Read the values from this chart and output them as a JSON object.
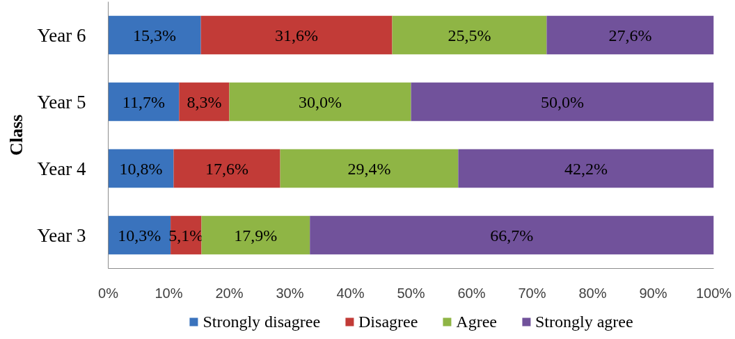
{
  "chart_data": {
    "type": "bar",
    "orientation": "horizontal",
    "stacked": true,
    "ylabel": "Class",
    "categories": [
      "Year 6",
      "Year 5",
      "Year 4",
      "Year 3"
    ],
    "series": [
      {
        "name": "Strongly disagree",
        "color": "#3a73bd",
        "values": [
          15.3,
          11.7,
          10.8,
          10.3
        ],
        "value_labels": [
          "15,3%",
          "11,7%",
          "10,8%",
          "10,3%"
        ]
      },
      {
        "name": "Disagree",
        "color": "#c23b37",
        "values": [
          31.6,
          8.3,
          17.6,
          5.1
        ],
        "value_labels": [
          "31,6%",
          "8,3%",
          "17,6%",
          "5,1%"
        ]
      },
      {
        "name": "Agree",
        "color": "#8fb545",
        "values": [
          25.5,
          30.0,
          29.4,
          17.9
        ],
        "value_labels": [
          "25,5%",
          "30,0%",
          "29,4%",
          "17,9%"
        ]
      },
      {
        "name": "Strongly agree",
        "color": "#71529b",
        "values": [
          27.6,
          50.0,
          42.2,
          66.7
        ],
        "value_labels": [
          "27,6%",
          "50,0%",
          "42,2%",
          "66,7%"
        ]
      }
    ],
    "xlim": [
      0,
      100
    ],
    "xticks": [
      {
        "value": 0,
        "label": "0%"
      },
      {
        "value": 10,
        "label": "10%"
      },
      {
        "value": 20,
        "label": "20%"
      },
      {
        "value": 30,
        "label": "30%"
      },
      {
        "value": 40,
        "label": "40%"
      },
      {
        "value": 50,
        "label": "50%"
      },
      {
        "value": 60,
        "label": "60%"
      },
      {
        "value": 70,
        "label": "70%"
      },
      {
        "value": 80,
        "label": "80%"
      },
      {
        "value": 90,
        "label": "90%"
      },
      {
        "value": 100,
        "label": "100%"
      }
    ],
    "legend": "bottom",
    "grid": false
  }
}
